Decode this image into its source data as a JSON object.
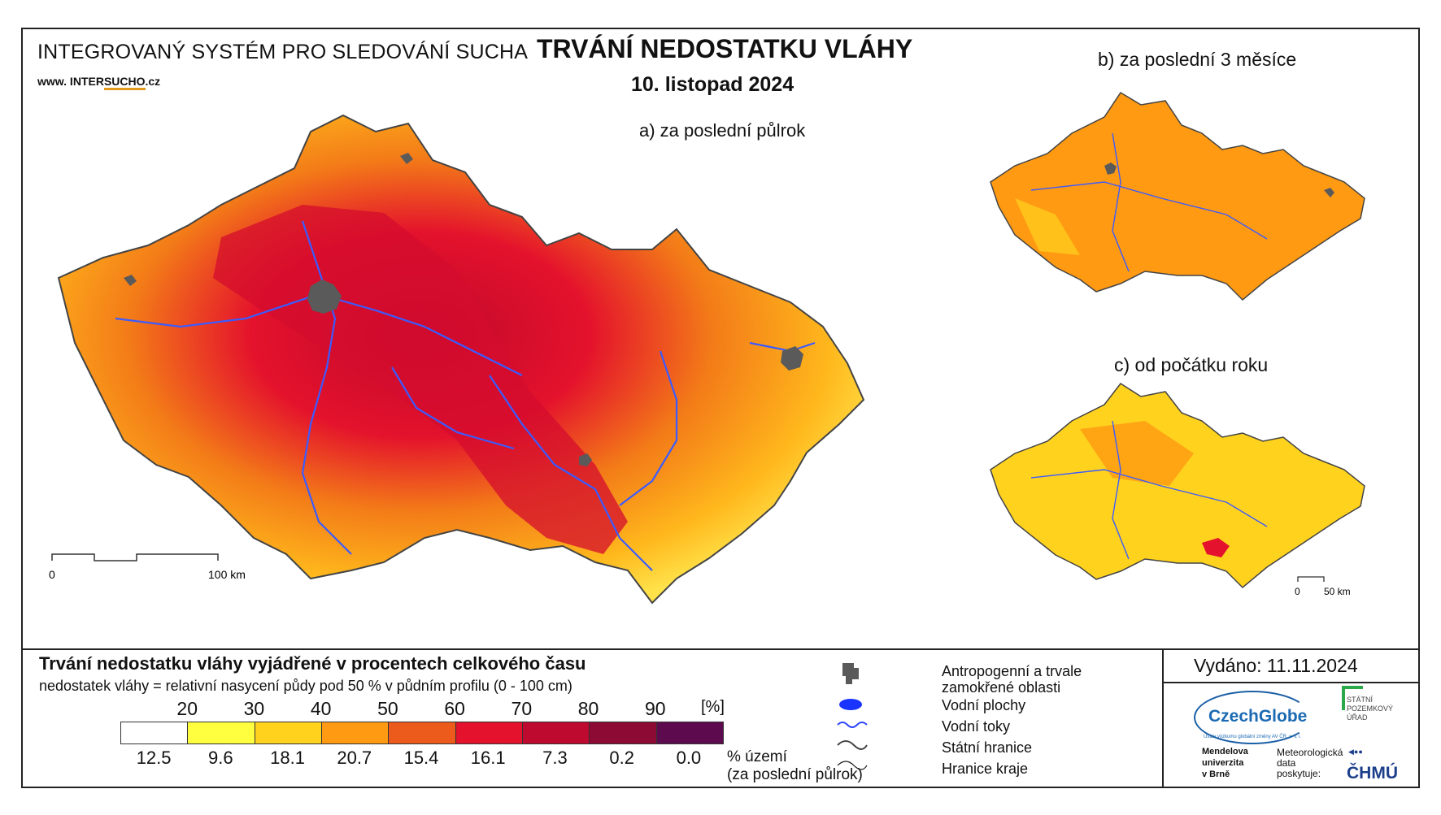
{
  "header": {
    "system_name": "INTEGROVANÝ SYSTÉM PRO SLEDOVÁNÍ SUCHA",
    "website_prefix": "www. INTER",
    "website_brand": "SUCHO",
    "website_suffix": ".cz",
    "title": "TRVÁNÍ NEDOSTATKU VLÁHY",
    "date": "10. listopad 2024"
  },
  "panels": {
    "a_label": "a) za poslední půlrok",
    "b_label": "b) za poslední 3 měsíce",
    "c_label": "c) od počátku roku"
  },
  "scale_main": {
    "zero": "0",
    "end": "100 km"
  },
  "scale_small": {
    "zero": "0",
    "end": "50 km"
  },
  "legend": {
    "title": "Trvání nedostatku vláhy vyjádřené v procentech celkového času",
    "subtitle": "nedostatek vláhy = relativní nasycení půdy pod 50 % v půdním profilu (0 - 100 cm)",
    "unit": "[%]",
    "thresholds": [
      "20",
      "30",
      "40",
      "50",
      "60",
      "70",
      "80",
      "90"
    ],
    "percent_area": [
      "12.5",
      "9.6",
      "18.1",
      "20.7",
      "15.4",
      "16.1",
      "7.3",
      "0.2",
      "0.0"
    ],
    "area_label_1": "% území",
    "area_label_2": "(za poslední půlrok)",
    "colors": [
      "#ffffff",
      "#ffff40",
      "#ffd21e",
      "#ff9a12",
      "#ec5a1c",
      "#e4122c",
      "#bd0a2e",
      "#8c0a34",
      "#5e0a4e"
    ]
  },
  "map_legend": {
    "anthro_1": "Antropogenní a trvale",
    "anthro_2": "zamokřené oblasti",
    "water_bodies": "Vodní plochy",
    "water_streams": "Vodní toky",
    "state_border": "Státní hranice",
    "region_border": "Hranice kraje"
  },
  "issued": "Vydáno: 11.11.2024",
  "logos": {
    "czechglobe": "CzechGlobe",
    "czechglobe_sub": "Ústav výzkumu globální změny AV ČR, v. v. i.",
    "spu_1": "STÁTNÍ",
    "spu_2": "POZEMKOVÝ",
    "spu_3": "ÚŘAD",
    "mendel_1": "Mendelova",
    "mendel_2": "univerzita",
    "mendel_3": "v Brně",
    "meteo_1": "Meteorologická",
    "meteo_2": "data",
    "meteo_3": "poskytuje:",
    "chmu": "ČHMÚ"
  }
}
